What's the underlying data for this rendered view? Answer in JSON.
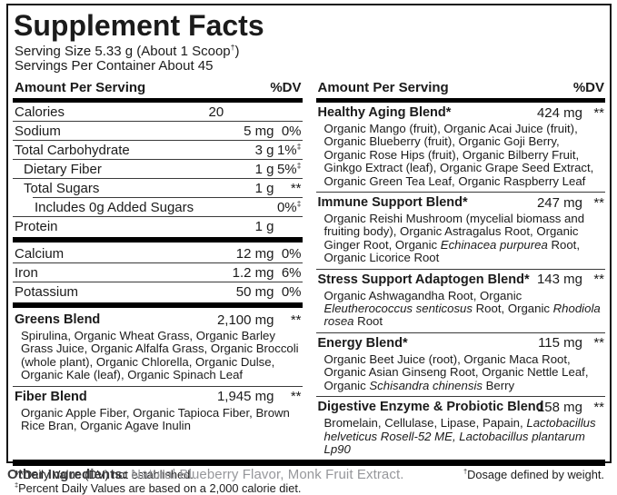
{
  "title": "Supplement Facts",
  "serving": {
    "size": "Serving Size 5.33 g (About 1 Scoop^†^)",
    "per_container": "Servings Per Container About 45"
  },
  "table_header": {
    "amount": "Amount Per Serving",
    "dv": "%DV"
  },
  "left": {
    "nutrients": [
      {
        "name": "Calories",
        "amount": "20",
        "dv": ""
      },
      {
        "name": "Sodium",
        "amount": "5 mg",
        "dv": "0%"
      },
      {
        "name": "Total Carbohydrate",
        "amount": "3 g",
        "dv": "1%^‡^"
      },
      {
        "name": "Dietary Fiber",
        "amount": "1 g",
        "dv": "5%^‡^"
      },
      {
        "name": "Total Sugars",
        "amount": "1 g",
        "dv": "**"
      },
      {
        "name": "Includes 0g Added Sugars",
        "amount": "",
        "dv": "0%^‡^"
      },
      {
        "name": "Protein",
        "amount": "1 g",
        "dv": ""
      }
    ],
    "minerals": [
      {
        "name": "Calcium",
        "amount": "12 mg",
        "dv": "0%"
      },
      {
        "name": "Iron",
        "amount": "1.2 mg",
        "dv": "6%"
      },
      {
        "name": "Potassium",
        "amount": "50 mg",
        "dv": "0%"
      }
    ],
    "blends": [
      {
        "name": "Greens Blend",
        "amount": "2,100 mg",
        "dv": "**",
        "ingredients": "Spirulina, Organic Wheat Grass, Organic Barley Grass Juice, Organic Alfalfa Grass, Organic Broccoli (whole plant), Organic Chlorella, Organic Dulse, Organic Kale (leaf), Organic Spinach Leaf"
      },
      {
        "name": "Fiber Blend",
        "amount": "1,945 mg",
        "dv": "**",
        "ingredients": "Organic Apple Fiber, Organic Tapioca Fiber, Brown Rice Bran, Organic Agave Inulin"
      }
    ],
    "footnote1": "**Daily Value (DV) not established.",
    "footnote2": "^‡^Percent Daily Values are based on a 2,000 calorie diet."
  },
  "right": {
    "blends": [
      {
        "name": "Healthy Aging Blend*",
        "amount": "424 mg",
        "dv": "**",
        "ingredients": "Organic Mango (fruit), Organic Acai Juice (fruit), Organic Blueberry (fruit), Organic Goji Berry, Organic Rose Hips (fruit), Organic Bilberry Fruit, Ginkgo Extract (leaf), Organic Grape Seed Extract, Organic Green Tea Leaf, Organic Raspberry Leaf"
      },
      {
        "name": "Immune Support Blend*",
        "amount": "247 mg",
        "dv": "**",
        "ingredients": "Organic Reishi Mushroom (mycelial biomass and fruiting body), Organic Astragalus Root, Organic Ginger Root, Organic ~Echinacea purpurea~ Root, Organic Licorice Root"
      },
      {
        "name": "Stress Support Adaptogen Blend*",
        "amount": "143 mg",
        "dv": "**",
        "ingredients": "Organic Ashwagandha Root, Organic ~Eleutherococcus senticosus~ Root, Organic ~Rhodiola rosea~ Root"
      },
      {
        "name": "Energy Blend*",
        "amount": "115 mg",
        "dv": "**",
        "ingredients": "Organic Beet Juice (root), Organic Maca Root, Organic Asian Ginseng Root, Organic Nettle Leaf, Organic ~Schisandra chinensis~ Berry"
      },
      {
        "name": "Digestive Enzyme & Probiotic Blend",
        "amount": "158 mg",
        "dv": "**",
        "ingredients": "Bromelain, Cellulase, Lipase, Papain, ~Lactobacillus helveticus Rosell-52 ME, Lactobacillus plantarum Lp90~"
      }
    ],
    "footnote": "^†^Dosage defined by weight."
  },
  "other_ingredients": {
    "label": "Other Ingredients:",
    "text": " Natural Blueberry Flavor, Monk Fruit Extract."
  },
  "colors": {
    "ink": "#1b1b1b",
    "bar": "#000000",
    "other_text_gray": "#96979b"
  }
}
